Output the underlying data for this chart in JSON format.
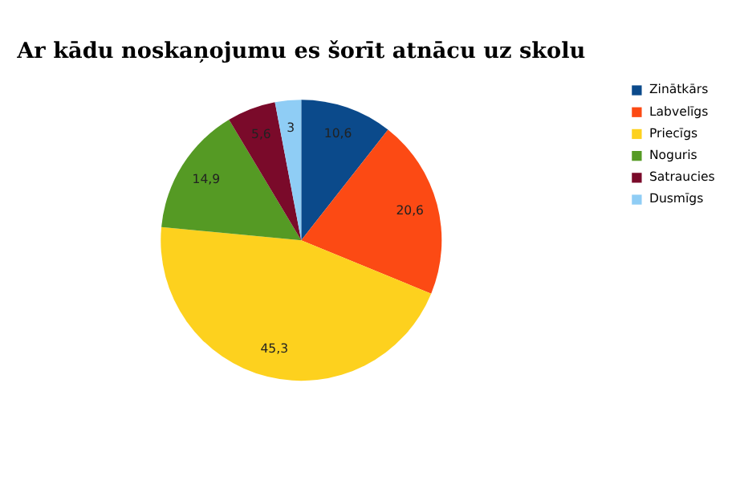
{
  "chart_data": {
    "type": "pie",
    "title": "Ar kādu noskaņojumu es šorīt atnācu uz skolu",
    "categories": [
      "Zinātkārs",
      "Labvelīgs",
      "Priecīgs",
      "Noguris",
      "Satraucies",
      "Dusmīgs"
    ],
    "values": [
      10.6,
      20.6,
      45.3,
      14.9,
      5.6,
      3
    ],
    "value_labels": [
      "10,6",
      "20,6",
      "45,3",
      "14,9",
      "5,6",
      "3"
    ],
    "colors": [
      "#0b4a8b",
      "#fc4a14",
      "#fdd11e",
      "#559a24",
      "#7a0a2a",
      "#8fcdf5"
    ],
    "legend": "right"
  }
}
